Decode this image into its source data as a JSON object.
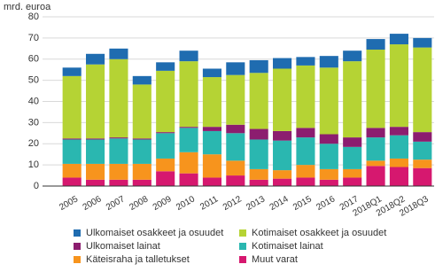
{
  "chart_data": {
    "type": "bar",
    "stacked": true,
    "y_label": "mrd. euroa",
    "categories": [
      "2005",
      "2006",
      "2007",
      "2008",
      "2009",
      "2010",
      "2011",
      "2012",
      "2013",
      "2014",
      "2015",
      "2016",
      "2017",
      "2018Q1",
      "2018Q2",
      "2018Q3"
    ],
    "series": [
      {
        "name": "Muut varat",
        "color": "#d6186f",
        "values": [
          4,
          3,
          3,
          3,
          7,
          6,
          4,
          5,
          3,
          3.5,
          4,
          3,
          4,
          9.5,
          9,
          8.5
        ]
      },
      {
        "name": "Käteisraha ja talletukset",
        "color": "#f7941d",
        "values": [
          6.5,
          7.5,
          7.5,
          7.5,
          6,
          10,
          11,
          7,
          5,
          4,
          6,
          5,
          4,
          2.5,
          4,
          4
        ]
      },
      {
        "name": "Kotimaiset lainat",
        "color": "#2ab7b0",
        "values": [
          11.5,
          11.5,
          12,
          11.5,
          12,
          11.5,
          11,
          13,
          14,
          14,
          13,
          12,
          10.5,
          11,
          11,
          8.5
        ]
      },
      {
        "name": "Ulkomaiset lainat",
        "color": "#8c1d6f",
        "values": [
          0.5,
          0.5,
          0.5,
          0.5,
          0.5,
          0.5,
          2,
          4,
          5,
          4.5,
          4.5,
          4.5,
          4.5,
          4.5,
          4,
          4.5
        ]
      },
      {
        "name": "Kotimaiset osakkeet ja osuudet",
        "color": "#b5d334",
        "values": [
          29.5,
          35,
          37,
          25.5,
          29,
          31,
          23.5,
          23.5,
          26.5,
          29.5,
          29.5,
          31.5,
          36,
          37,
          39,
          40
        ]
      },
      {
        "name": "Ulkomaiset osakkeet ja osuudet",
        "color": "#1f6cb0",
        "values": [
          4,
          5,
          5,
          4,
          4,
          5,
          4,
          6,
          6,
          5,
          4,
          5.5,
          5,
          5,
          5,
          4.5
        ]
      }
    ],
    "ylim": [
      0,
      80
    ],
    "yticks": [
      0,
      10,
      20,
      30,
      40,
      50,
      60,
      70,
      80
    ],
    "grid": true
  }
}
